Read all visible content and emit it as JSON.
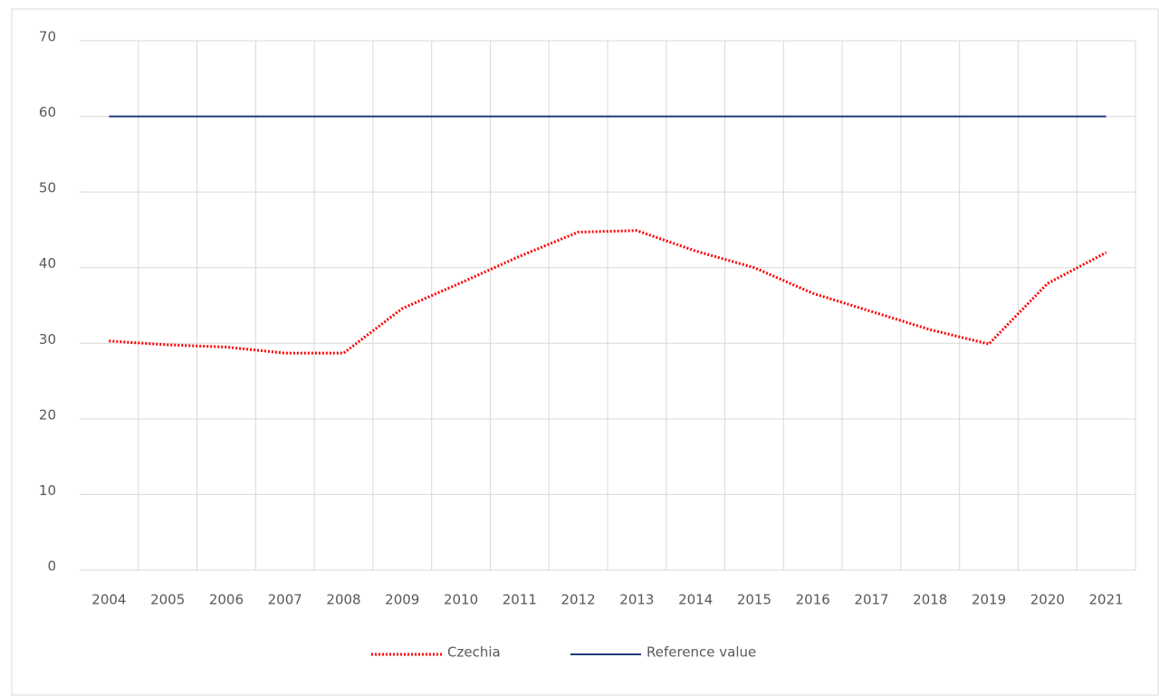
{
  "chart_data": {
    "type": "line",
    "categories": [
      "2004",
      "2005",
      "2006",
      "2007",
      "2008",
      "2009",
      "2010",
      "2011",
      "2012",
      "2013",
      "2014",
      "2015",
      "2016",
      "2017",
      "2018",
      "2019",
      "2020",
      "2021"
    ],
    "series": [
      {
        "name": "Czechia",
        "color": "#ff0000",
        "dash": "dotted",
        "values": [
          30.3,
          29.8,
          29.5,
          28.7,
          28.7,
          34.6,
          38.0,
          41.5,
          44.7,
          44.9,
          42.2,
          40.0,
          36.6,
          34.2,
          31.8,
          29.9,
          37.9,
          42.0
        ]
      },
      {
        "name": "Reference value",
        "color": "#1f3a7a",
        "dash": "solid",
        "values": [
          60,
          60,
          60,
          60,
          60,
          60,
          60,
          60,
          60,
          60,
          60,
          60,
          60,
          60,
          60,
          60,
          60,
          60
        ]
      }
    ],
    "ylim": [
      0,
      70
    ],
    "yticks": [
      0,
      10,
      20,
      30,
      40,
      50,
      60,
      70
    ],
    "grid": true,
    "legend": "bottom"
  }
}
